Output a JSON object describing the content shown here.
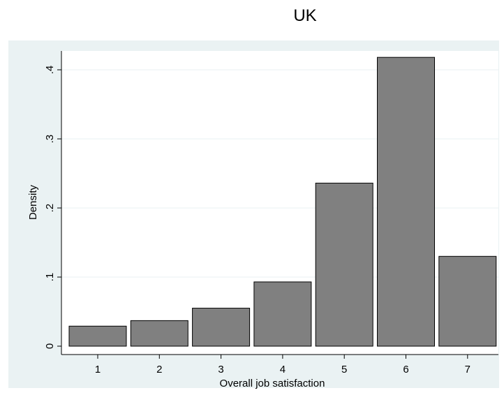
{
  "chart_data": {
    "type": "bar",
    "title": "UK",
    "xlabel": "Overall job satisfaction",
    "ylabel": "Density",
    "categories": [
      "1",
      "2",
      "3",
      "4",
      "5",
      "6",
      "7"
    ],
    "values": [
      0.029,
      0.037,
      0.055,
      0.093,
      0.236,
      0.418,
      0.13
    ],
    "yticks": [
      0,
      0.1,
      0.2,
      0.3,
      0.4
    ],
    "ytick_labels": [
      "0",
      ".1",
      ".2",
      ".3",
      ".4"
    ],
    "ylim": [
      0,
      0.42
    ],
    "grid": true,
    "colors": {
      "outer_background": "#eaf2f3",
      "plot_background": "#ffffff",
      "bar_fill": "#808080",
      "bar_stroke": "#000000",
      "grid": "#eaf2f3"
    }
  }
}
